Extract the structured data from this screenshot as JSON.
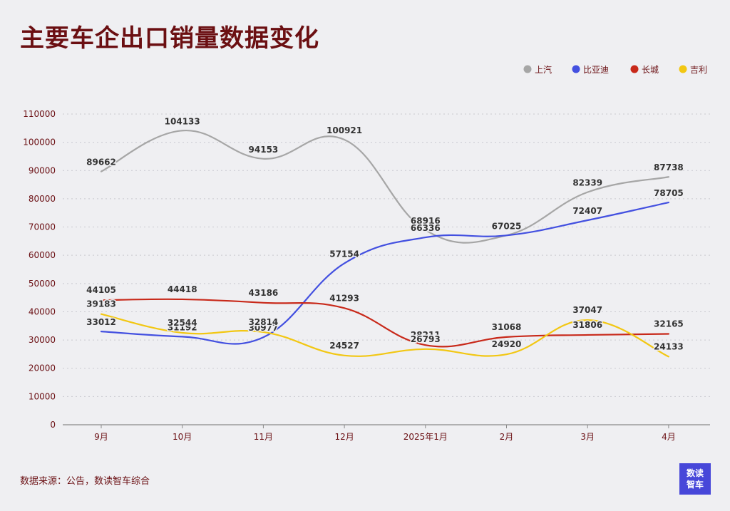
{
  "title": "主要车企出口销量数据变化",
  "source": "数据来源：公告，数读智车综合",
  "logo": {
    "line1": "数读",
    "line2": "智车"
  },
  "chart_data": {
    "type": "line",
    "title": "主要车企出口销量数据变化",
    "categories": [
      "9月",
      "10月",
      "11月",
      "12月",
      "2025年1月",
      "2月",
      "3月",
      "4月"
    ],
    "ylim": [
      0,
      110000
    ],
    "yticks": [
      0,
      10000,
      20000,
      30000,
      40000,
      50000,
      60000,
      70000,
      80000,
      90000,
      100000,
      110000
    ],
    "grid": true,
    "legend_position": "top-right",
    "series": [
      {
        "name": "上汽",
        "color": "#a6a6a6",
        "values": [
          89662,
          104133,
          94153,
          100921,
          68916,
          67025,
          82339,
          87738
        ]
      },
      {
        "name": "比亚迪",
        "color": "#4350e0",
        "values": [
          33012,
          31192,
          30977,
          57154,
          66336,
          67025,
          72407,
          78705
        ]
      },
      {
        "name": "长城",
        "color": "#c8291a",
        "values": [
          44105,
          44418,
          43186,
          41293,
          28211,
          31068,
          31806,
          32165
        ]
      },
      {
        "name": "吉利",
        "color": "#f2c713",
        "values": [
          39183,
          32544,
          32814,
          24527,
          26793,
          24920,
          37047,
          24133
        ]
      }
    ]
  }
}
